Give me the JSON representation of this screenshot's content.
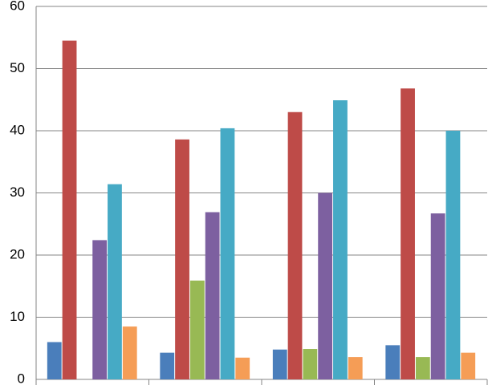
{
  "chart_data": {
    "type": "bar",
    "categories": [
      null,
      null,
      null,
      null
    ],
    "series": [
      {
        "color": "#4a7ebb",
        "values": [
          6,
          4.3,
          4.8,
          5.5
        ]
      },
      {
        "color": "#be4b48",
        "values": [
          54.5,
          38.6,
          43,
          46.8
        ]
      },
      {
        "color": "#98b954",
        "values": [
          null,
          15.9,
          4.9,
          3.6
        ]
      },
      {
        "color": "#7d60a0",
        "values": [
          22.4,
          26.9,
          30,
          26.7
        ]
      },
      {
        "color": "#46aac5",
        "values": [
          31.4,
          40.4,
          44.9,
          40
        ]
      },
      {
        "color": "#f59d56",
        "values": [
          8.5,
          3.5,
          3.6,
          4.3
        ]
      }
    ],
    "ylim": [
      0,
      60
    ],
    "yticks": [
      0,
      10,
      20,
      30,
      40,
      50,
      60
    ],
    "grid": true
  }
}
